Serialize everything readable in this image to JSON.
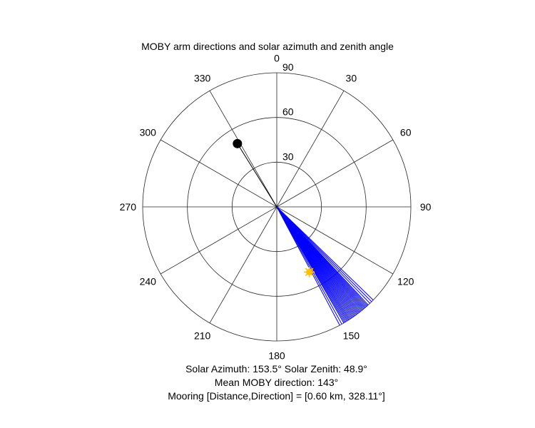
{
  "chart_data": {
    "type": "polar",
    "title": "MOBY arm directions and solar azimuth and zenith angle",
    "theta_direction": "clockwise",
    "theta_zero_location": "top",
    "r_lim": [
      0,
      90
    ],
    "r_ticks": [
      30,
      60,
      90
    ],
    "r_tick_labels": [
      "30",
      "60",
      "90"
    ],
    "theta_ticks": [
      0,
      30,
      60,
      90,
      120,
      150,
      180,
      210,
      240,
      270,
      300,
      330
    ],
    "theta_tick_labels": [
      "0",
      "30",
      "60",
      "90",
      "120",
      "150",
      "180",
      "210",
      "240",
      "270",
      "300",
      "330"
    ],
    "grid": true,
    "series": [
      {
        "kind": "arm_directions",
        "color": "#0000ff",
        "radius": 90,
        "theta": [
          134.0,
          135.0,
          136.0,
          137.0,
          137.5,
          138.0,
          138.5,
          139.0,
          139.5,
          140.0,
          140.5,
          141.0,
          141.5,
          142.0,
          142.5,
          143.0,
          143.5,
          144.0,
          144.5,
          145.0,
          145.5,
          146.0,
          146.5,
          147.0,
          147.5,
          148.0,
          148.5,
          149.0,
          149.5,
          150.0,
          151.0,
          152.0
        ]
      },
      {
        "kind": "mooring",
        "color": "#000000",
        "marker": "filled-circle",
        "theta": 328.11,
        "r": 50,
        "radial_line": true
      },
      {
        "kind": "sun",
        "color": "#ffc000",
        "marker": "sun",
        "theta": 153.5,
        "r": 48.9
      }
    ]
  },
  "captions": {
    "line1": "Solar Azimuth: 153.5°    Solar Zenith: 48.9°",
    "line2": "Mean MOBY direction: 143°",
    "line3": "Mooring [Distance,Direction] = [0.60 km, 328.11°]"
  }
}
